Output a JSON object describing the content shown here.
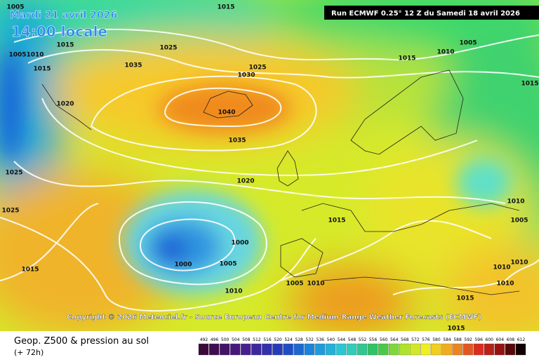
{
  "header": {
    "date": "Mardi 21 avril 2026",
    "time": "14:00 locale",
    "run": "Run ECMWF 0.25° 12 Z du Samedi 18 avril 2026"
  },
  "copyright": "Copyright © 2026 Meteociel.fr - Source European Centre for Medium-Range Weather Forecasts (ECMWF)",
  "isobar_labels": [
    "1005",
    "1015",
    "1015",
    "1025",
    "1005",
    "1010",
    "1015",
    "1035",
    "1025",
    "1030",
    "1020",
    "1040",
    "1035",
    "1020",
    "1025",
    "1025",
    "1015",
    "1000",
    "1000",
    "1005",
    "1015",
    "1010",
    "1005",
    "1010",
    "1015",
    "1010",
    "1005",
    "1015",
    "1010",
    "1005",
    "1010",
    "1010",
    "1010",
    "1015",
    "1015"
  ],
  "legend": {
    "title": "Geop. Z500 & pression au sol",
    "lead": "(+ 72h)",
    "scale": [
      "492",
      "496",
      "500",
      "504",
      "508",
      "512",
      "516",
      "520",
      "524",
      "528",
      "532",
      "536",
      "540",
      "544",
      "548",
      "552",
      "556",
      "560",
      "564",
      "568",
      "572",
      "576",
      "580",
      "584",
      "588",
      "592",
      "596",
      "600",
      "604",
      "608",
      "612"
    ]
  }
}
